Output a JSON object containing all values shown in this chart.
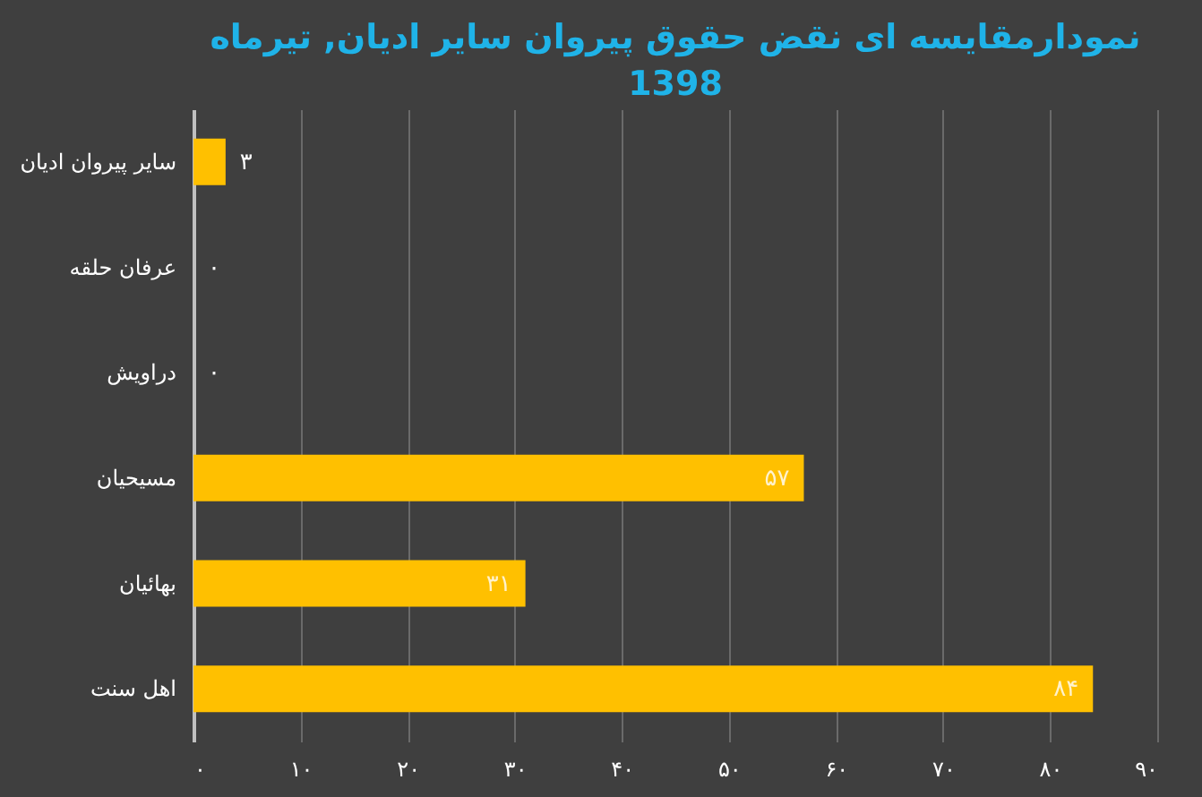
{
  "chart_data": {
    "type": "bar",
    "orientation": "horizontal",
    "title": "نمودارمقایسه ای نقض حقوق پیروان سایر ادیان, تیرماه 1398",
    "categories": [
      "سایر پیروان ادیان",
      "عرفان حلقه",
      "دراویش",
      "مسیحیان",
      "بهائیان",
      "اهل سنت"
    ],
    "values": [
      3,
      0,
      0,
      57,
      31,
      84
    ],
    "value_labels": [
      "۳",
      "۰",
      "۰",
      "۵۷",
      "۳۱",
      "۸۴"
    ],
    "color": "#ffc000",
    "xlim": [
      0,
      90
    ],
    "xticks": [
      {
        "value": 0,
        "label": "۰"
      },
      {
        "value": 10,
        "label": "۱۰"
      },
      {
        "value": 20,
        "label": "۲۰"
      },
      {
        "value": 30,
        "label": "۳۰"
      },
      {
        "value": 40,
        "label": "۴۰"
      },
      {
        "value": 50,
        "label": "۵۰"
      },
      {
        "value": 60,
        "label": "۶۰"
      },
      {
        "value": 70,
        "label": "۷۰"
      },
      {
        "value": 80,
        "label": "۸۰"
      },
      {
        "value": 90,
        "label": "۹۰"
      }
    ],
    "grid": "x"
  }
}
